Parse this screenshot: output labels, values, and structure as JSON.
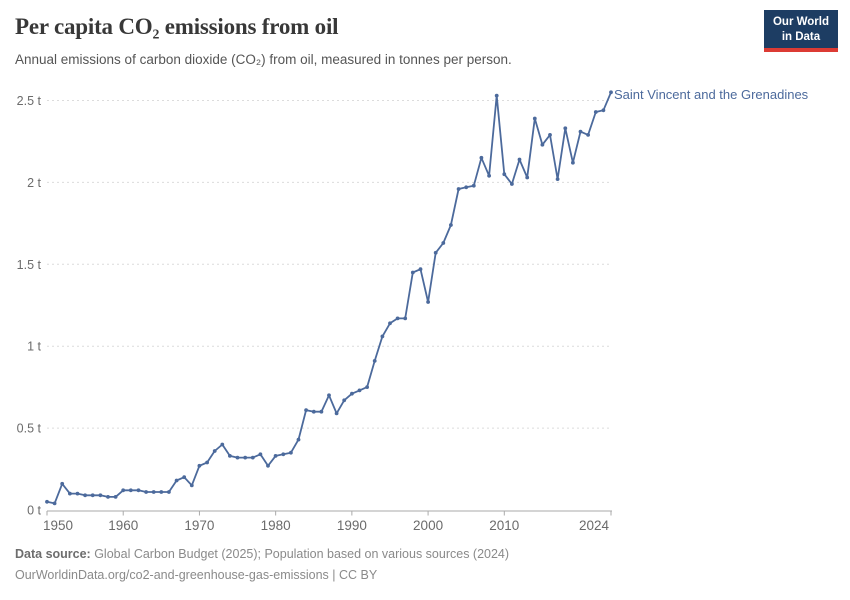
{
  "header": {
    "title": "Per capita CO₂ emissions from oil",
    "subtitle": "Annual emissions of carbon dioxide (CO₂) from oil, measured in tonnes per person.",
    "logo": {
      "line1": "Our World",
      "line2": "in Data"
    }
  },
  "chart_data": {
    "type": "line",
    "entity": "Saint Vincent and the Grenadines",
    "unit": "tonnes per person",
    "line_color": "#4C6A9C",
    "grid": "horizontal-dashed",
    "xlim": [
      1950,
      2024
    ],
    "ylim": [
      0,
      2.6
    ],
    "x_ticks": [
      1950,
      1960,
      1970,
      1980,
      1990,
      2000,
      2010,
      2024
    ],
    "y_ticks": [
      {
        "value": 0,
        "label": "0 t"
      },
      {
        "value": 0.5,
        "label": "0.5 t"
      },
      {
        "value": 1,
        "label": "1 t"
      },
      {
        "value": 1.5,
        "label": "1.5 t"
      },
      {
        "value": 2,
        "label": "2 t"
      },
      {
        "value": 2.5,
        "label": "2.5 t"
      }
    ],
    "x": [
      1950,
      1951,
      1952,
      1953,
      1954,
      1955,
      1956,
      1957,
      1958,
      1959,
      1960,
      1961,
      1962,
      1963,
      1964,
      1965,
      1966,
      1967,
      1968,
      1969,
      1970,
      1971,
      1972,
      1973,
      1974,
      1975,
      1976,
      1977,
      1978,
      1979,
      1980,
      1981,
      1982,
      1983,
      1984,
      1985,
      1986,
      1987,
      1988,
      1989,
      1990,
      1991,
      1992,
      1993,
      1994,
      1995,
      1996,
      1997,
      1998,
      1999,
      2000,
      2001,
      2002,
      2003,
      2004,
      2005,
      2006,
      2007,
      2008,
      2009,
      2010,
      2011,
      2012,
      2013,
      2014,
      2015,
      2016,
      2017,
      2018,
      2019,
      2020,
      2021,
      2022,
      2023,
      2024
    ],
    "y": [
      0.05,
      0.04,
      0.16,
      0.1,
      0.1,
      0.09,
      0.09,
      0.09,
      0.08,
      0.08,
      0.12,
      0.12,
      0.12,
      0.11,
      0.11,
      0.11,
      0.11,
      0.18,
      0.2,
      0.15,
      0.27,
      0.29,
      0.36,
      0.4,
      0.33,
      0.32,
      0.32,
      0.32,
      0.34,
      0.27,
      0.33,
      0.34,
      0.35,
      0.43,
      0.61,
      0.6,
      0.6,
      0.7,
      0.59,
      0.67,
      0.71,
      0.73,
      0.75,
      0.91,
      1.06,
      1.14,
      1.17,
      1.17,
      1.45,
      1.47,
      1.27,
      1.57,
      1.63,
      1.74,
      1.96,
      1.97,
      1.98,
      2.15,
      2.04,
      2.53,
      2.05,
      1.99,
      2.14,
      2.03,
      2.39,
      2.23,
      2.29,
      2.02,
      2.33,
      2.12,
      2.31,
      2.29,
      2.43,
      2.44,
      2.55
    ]
  },
  "footer": {
    "source_label": "Data source:",
    "source_text": " Global Carbon Budget (2025); Population based on various sources (2024)",
    "link_line": "OurWorldinData.org/co2-and-greenhouse-gas-emissions | CC BY"
  }
}
